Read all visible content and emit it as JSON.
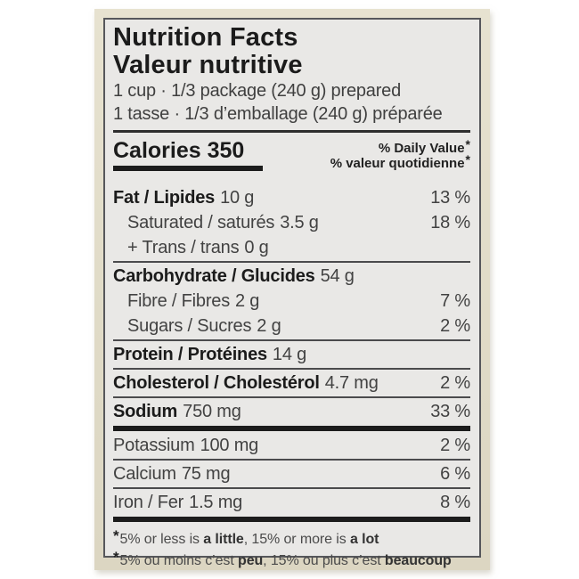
{
  "label": {
    "title_en": "Nutrition Facts",
    "title_fr": "Valeur nutritive",
    "serving_en": "1 cup · 1/3 package (240 g) prepared",
    "serving_fr": "1 tasse · 1/3 d’emballage (240 g) préparée",
    "calories": "Calories 350",
    "daily_value_en": "% Daily Value",
    "daily_value_fr": "% valeur quotidienne",
    "footnote_symbol": "*",
    "rows": [
      {
        "name": "Fat / Lipides",
        "value": "10 g",
        "pct": "13 %"
      },
      {
        "name": "Saturated / saturés",
        "value": "3.5 g",
        "pct": "18 %"
      },
      {
        "name": "+ Trans / trans",
        "value": "0 g",
        "pct": ""
      },
      {
        "name": "Carbohydrate / Glucides",
        "value": "54 g",
        "pct": ""
      },
      {
        "name": "Fibre / Fibres",
        "value": "2 g",
        "pct": "7 %"
      },
      {
        "name": "Sugars / Sucres",
        "value": "2 g",
        "pct": "2 %"
      },
      {
        "name": "Protein / Protéines",
        "value": "14 g",
        "pct": ""
      },
      {
        "name": "Cholesterol / Cholestérol",
        "value": "4.7 mg",
        "pct": "2 %"
      },
      {
        "name": "Sodium",
        "value": "750 mg",
        "pct": "33 %"
      },
      {
        "name": "Potassium",
        "value": "100 mg",
        "pct": "2 %"
      },
      {
        "name": "Calcium",
        "value": "75 mg",
        "pct": "6 %"
      },
      {
        "name": "Iron / Fer",
        "value": "1.5 mg",
        "pct": "8 %"
      }
    ],
    "footnote_en": {
      "pre": "5% or less is ",
      "bold1": "a little",
      "mid": ", 15% or more is ",
      "bold2": "a lot"
    },
    "footnote_fr": {
      "pre": "5% ou moins c’est ",
      "bold1": "peu",
      "mid": ", 15% ou plus c’est ",
      "bold2": "beaucoup"
    }
  }
}
